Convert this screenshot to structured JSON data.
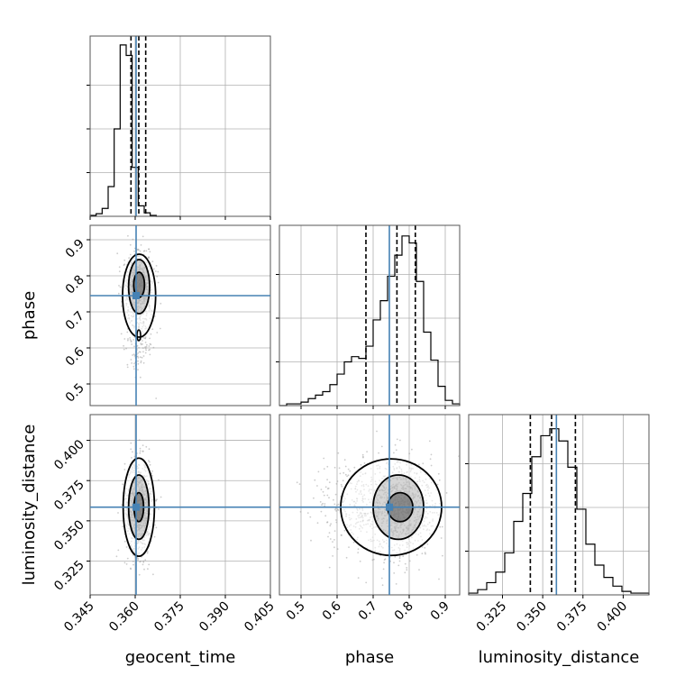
{
  "chart_data": {
    "type": "corner",
    "parameters": [
      "geocent_time",
      "phase",
      "luminosity_distance"
    ],
    "truths": {
      "geocent_time": 0.3603,
      "phase": 0.745,
      "luminosity_distance": 0.3585
    },
    "ranges": {
      "geocent_time": [
        0.345,
        0.405
      ],
      "phase": [
        0.44,
        0.94
      ],
      "luminosity_distance": [
        0.304,
        0.416
      ]
    },
    "ticks": {
      "geocent_time": [
        "0.345",
        "0.360",
        "0.375",
        "0.390",
        "0.405"
      ],
      "phase": [
        "0.5",
        "0.6",
        "0.7",
        "0.8",
        "0.9"
      ],
      "luminosity_distance": [
        "0.325",
        "0.350",
        "0.375",
        "0.400"
      ],
      "phase_y": [
        "0.5",
        "0.6",
        "0.7",
        "0.8",
        "0.9"
      ],
      "luminosity_distance_y": [
        "0.325",
        "0.350",
        "0.375",
        "0.400"
      ]
    },
    "quantiles": {
      "geocent_time": [
        0.3586,
        0.3612,
        0.3635
      ],
      "phase": [
        0.68,
        0.766,
        0.817
      ],
      "luminosity_distance": [
        0.3423,
        0.3555,
        0.3703
      ]
    },
    "histograms": {
      "geocent_time": {
        "edges": [
          0.345,
          0.347,
          0.349,
          0.351,
          0.353,
          0.355,
          0.357,
          0.359,
          0.361,
          0.363,
          0.365,
          0.367,
          0.369,
          0.371,
          0.373,
          0.375
        ],
        "counts": [
          0.005,
          0.015,
          0.045,
          0.17,
          0.5,
          0.98,
          0.92,
          0.28,
          0.06,
          0.02,
          0.005,
          0,
          0,
          0,
          0
        ]
      },
      "phase": {
        "edges": [
          0.44,
          0.46,
          0.48,
          0.5,
          0.52,
          0.54,
          0.56,
          0.58,
          0.6,
          0.62,
          0.64,
          0.66,
          0.68,
          0.7,
          0.72,
          0.74,
          0.76,
          0.78,
          0.8,
          0.82,
          0.84,
          0.86,
          0.88,
          0.9,
          0.92,
          0.94
        ],
        "counts": [
          0,
          0.01,
          0.01,
          0.02,
          0.04,
          0.06,
          0.08,
          0.12,
          0.18,
          0.25,
          0.28,
          0.27,
          0.34,
          0.49,
          0.6,
          0.74,
          0.86,
          0.97,
          0.93,
          0.71,
          0.42,
          0.26,
          0.11,
          0.03,
          0.01
        ]
      },
      "luminosity_distance": {
        "edges": [
          0.304,
          0.3096,
          0.3152,
          0.3208,
          0.3264,
          0.332,
          0.3376,
          0.3432,
          0.3488,
          0.3544,
          0.36,
          0.3656,
          0.3712,
          0.3768,
          0.3824,
          0.388,
          0.3936,
          0.3992,
          0.4048,
          0.4104,
          0.416
        ],
        "counts": [
          0.01,
          0.03,
          0.07,
          0.13,
          0.24,
          0.42,
          0.58,
          0.79,
          0.91,
          0.95,
          0.88,
          0.73,
          0.49,
          0.29,
          0.17,
          0.1,
          0.05,
          0.02,
          0.01,
          0.01
        ]
      }
    }
  },
  "axis_labels": {
    "x1": "geocent_time",
    "x2": "phase",
    "x3": "luminosity_distance",
    "y2": "phase",
    "y3": "luminosity_distance"
  },
  "colors": {
    "truth": "#4682b4",
    "hist": "#000000",
    "grid": "#b0b0b0",
    "points": "#9a9a9a",
    "contour_fill": "#5a5a5a"
  }
}
